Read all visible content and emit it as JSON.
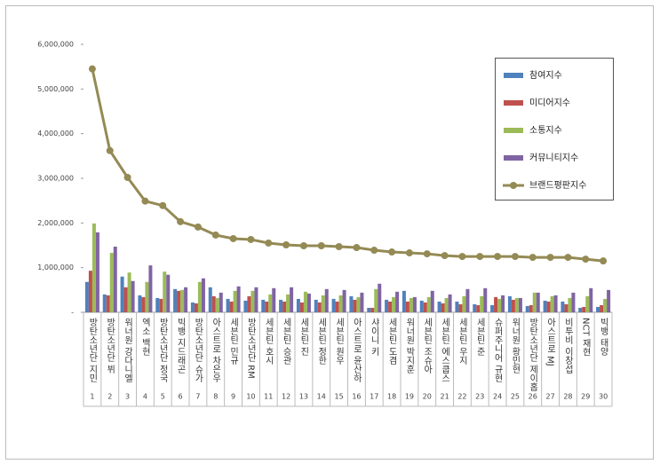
{
  "chart_data": {
    "type": "bar-line",
    "categories": [
      "방탄소년단 지민",
      "방탄소년단 뷔",
      "워너원 강다니엘",
      "엑소 백현",
      "방탄소년단 정국",
      "빅뱅 지드래곤",
      "방탄소년단 슈가",
      "아스트로 차은우",
      "세븐틴 민규",
      "방탄소년단 RM",
      "세븐틴 호시",
      "세븐틴 승관",
      "세븐틴 진",
      "세븐틴 정한",
      "세븐틴 원우",
      "아스트로 윤산하",
      "샤이니 키",
      "세븐틴 도겸",
      "워너원 박지훈",
      "세븐틴 조슈아",
      "세븐틴 에스쿱스",
      "세븐틴 우지",
      "세븐틴 준",
      "슈퍼주니어 규현",
      "워너원 황민현",
      "방탄소년단 제이홉",
      "아스트로 MJ",
      "비투비 이창섭",
      "NCT 재현",
      "빅뱅 태양"
    ],
    "ranks": [
      "1",
      "2",
      "3",
      "4",
      "5",
      "6",
      "7",
      "8",
      "9",
      "10",
      "11",
      "12",
      "13",
      "14",
      "15",
      "16",
      "17",
      "18",
      "19",
      "20",
      "21",
      "22",
      "23",
      "24",
      "25",
      "26",
      "27",
      "28",
      "29",
      "30"
    ],
    "series": [
      {
        "name": "참여지수",
        "type": "bar",
        "color": "#4f81bd",
        "values": [
          680000,
          400000,
          800000,
          380000,
          320000,
          520000,
          220000,
          560000,
          300000,
          260000,
          280000,
          280000,
          300000,
          280000,
          300000,
          360000,
          100000,
          280000,
          480000,
          260000,
          240000,
          240000,
          180000,
          160000,
          360000,
          140000,
          260000,
          240000,
          100000,
          120000
        ]
      },
      {
        "name": "미디어지수",
        "type": "bar",
        "color": "#c0504d",
        "values": [
          930000,
          380000,
          560000,
          340000,
          300000,
          480000,
          200000,
          360000,
          240000,
          360000,
          240000,
          240000,
          220000,
          220000,
          240000,
          280000,
          100000,
          240000,
          240000,
          220000,
          200000,
          180000,
          160000,
          340000,
          280000,
          160000,
          240000,
          180000,
          120000,
          160000
        ]
      },
      {
        "name": "소통지수",
        "type": "bar",
        "color": "#9bbb59",
        "values": [
          1990000,
          1330000,
          890000,
          680000,
          910000,
          500000,
          680000,
          320000,
          480000,
          480000,
          400000,
          400000,
          460000,
          380000,
          380000,
          340000,
          520000,
          340000,
          320000,
          340000,
          320000,
          360000,
          360000,
          300000,
          320000,
          440000,
          360000,
          320000,
          360000,
          300000
        ]
      },
      {
        "name": "커뮤니티지수",
        "type": "bar",
        "color": "#8064a2",
        "values": [
          1790000,
          1470000,
          700000,
          1050000,
          840000,
          560000,
          760000,
          440000,
          580000,
          560000,
          540000,
          560000,
          420000,
          520000,
          500000,
          440000,
          640000,
          460000,
          340000,
          480000,
          400000,
          520000,
          540000,
          380000,
          320000,
          440000,
          380000,
          440000,
          540000,
          500000
        ]
      },
      {
        "name": "브랜드평판지수",
        "type": "line",
        "color": "#948a54",
        "values": [
          5450000,
          3620000,
          3020000,
          2490000,
          2390000,
          2030000,
          1910000,
          1730000,
          1650000,
          1630000,
          1550000,
          1510000,
          1490000,
          1490000,
          1470000,
          1450000,
          1390000,
          1350000,
          1330000,
          1310000,
          1270000,
          1250000,
          1250000,
          1250000,
          1250000,
          1230000,
          1230000,
          1230000,
          1190000,
          1150000
        ]
      }
    ],
    "ylim": [
      0,
      6000000
    ],
    "yticks": [
      {
        "value": 0,
        "label": "-"
      },
      {
        "value": 1000000,
        "label": "1,000,000"
      },
      {
        "value": 2000000,
        "label": "2,000,000"
      },
      {
        "value": 3000000,
        "label": "3,000,000"
      },
      {
        "value": 4000000,
        "label": "4,000,000"
      },
      {
        "value": 5000000,
        "label": "5,000,000"
      },
      {
        "value": 6000000,
        "label": "6,000,000"
      }
    ],
    "grid": false,
    "legend": "right"
  }
}
